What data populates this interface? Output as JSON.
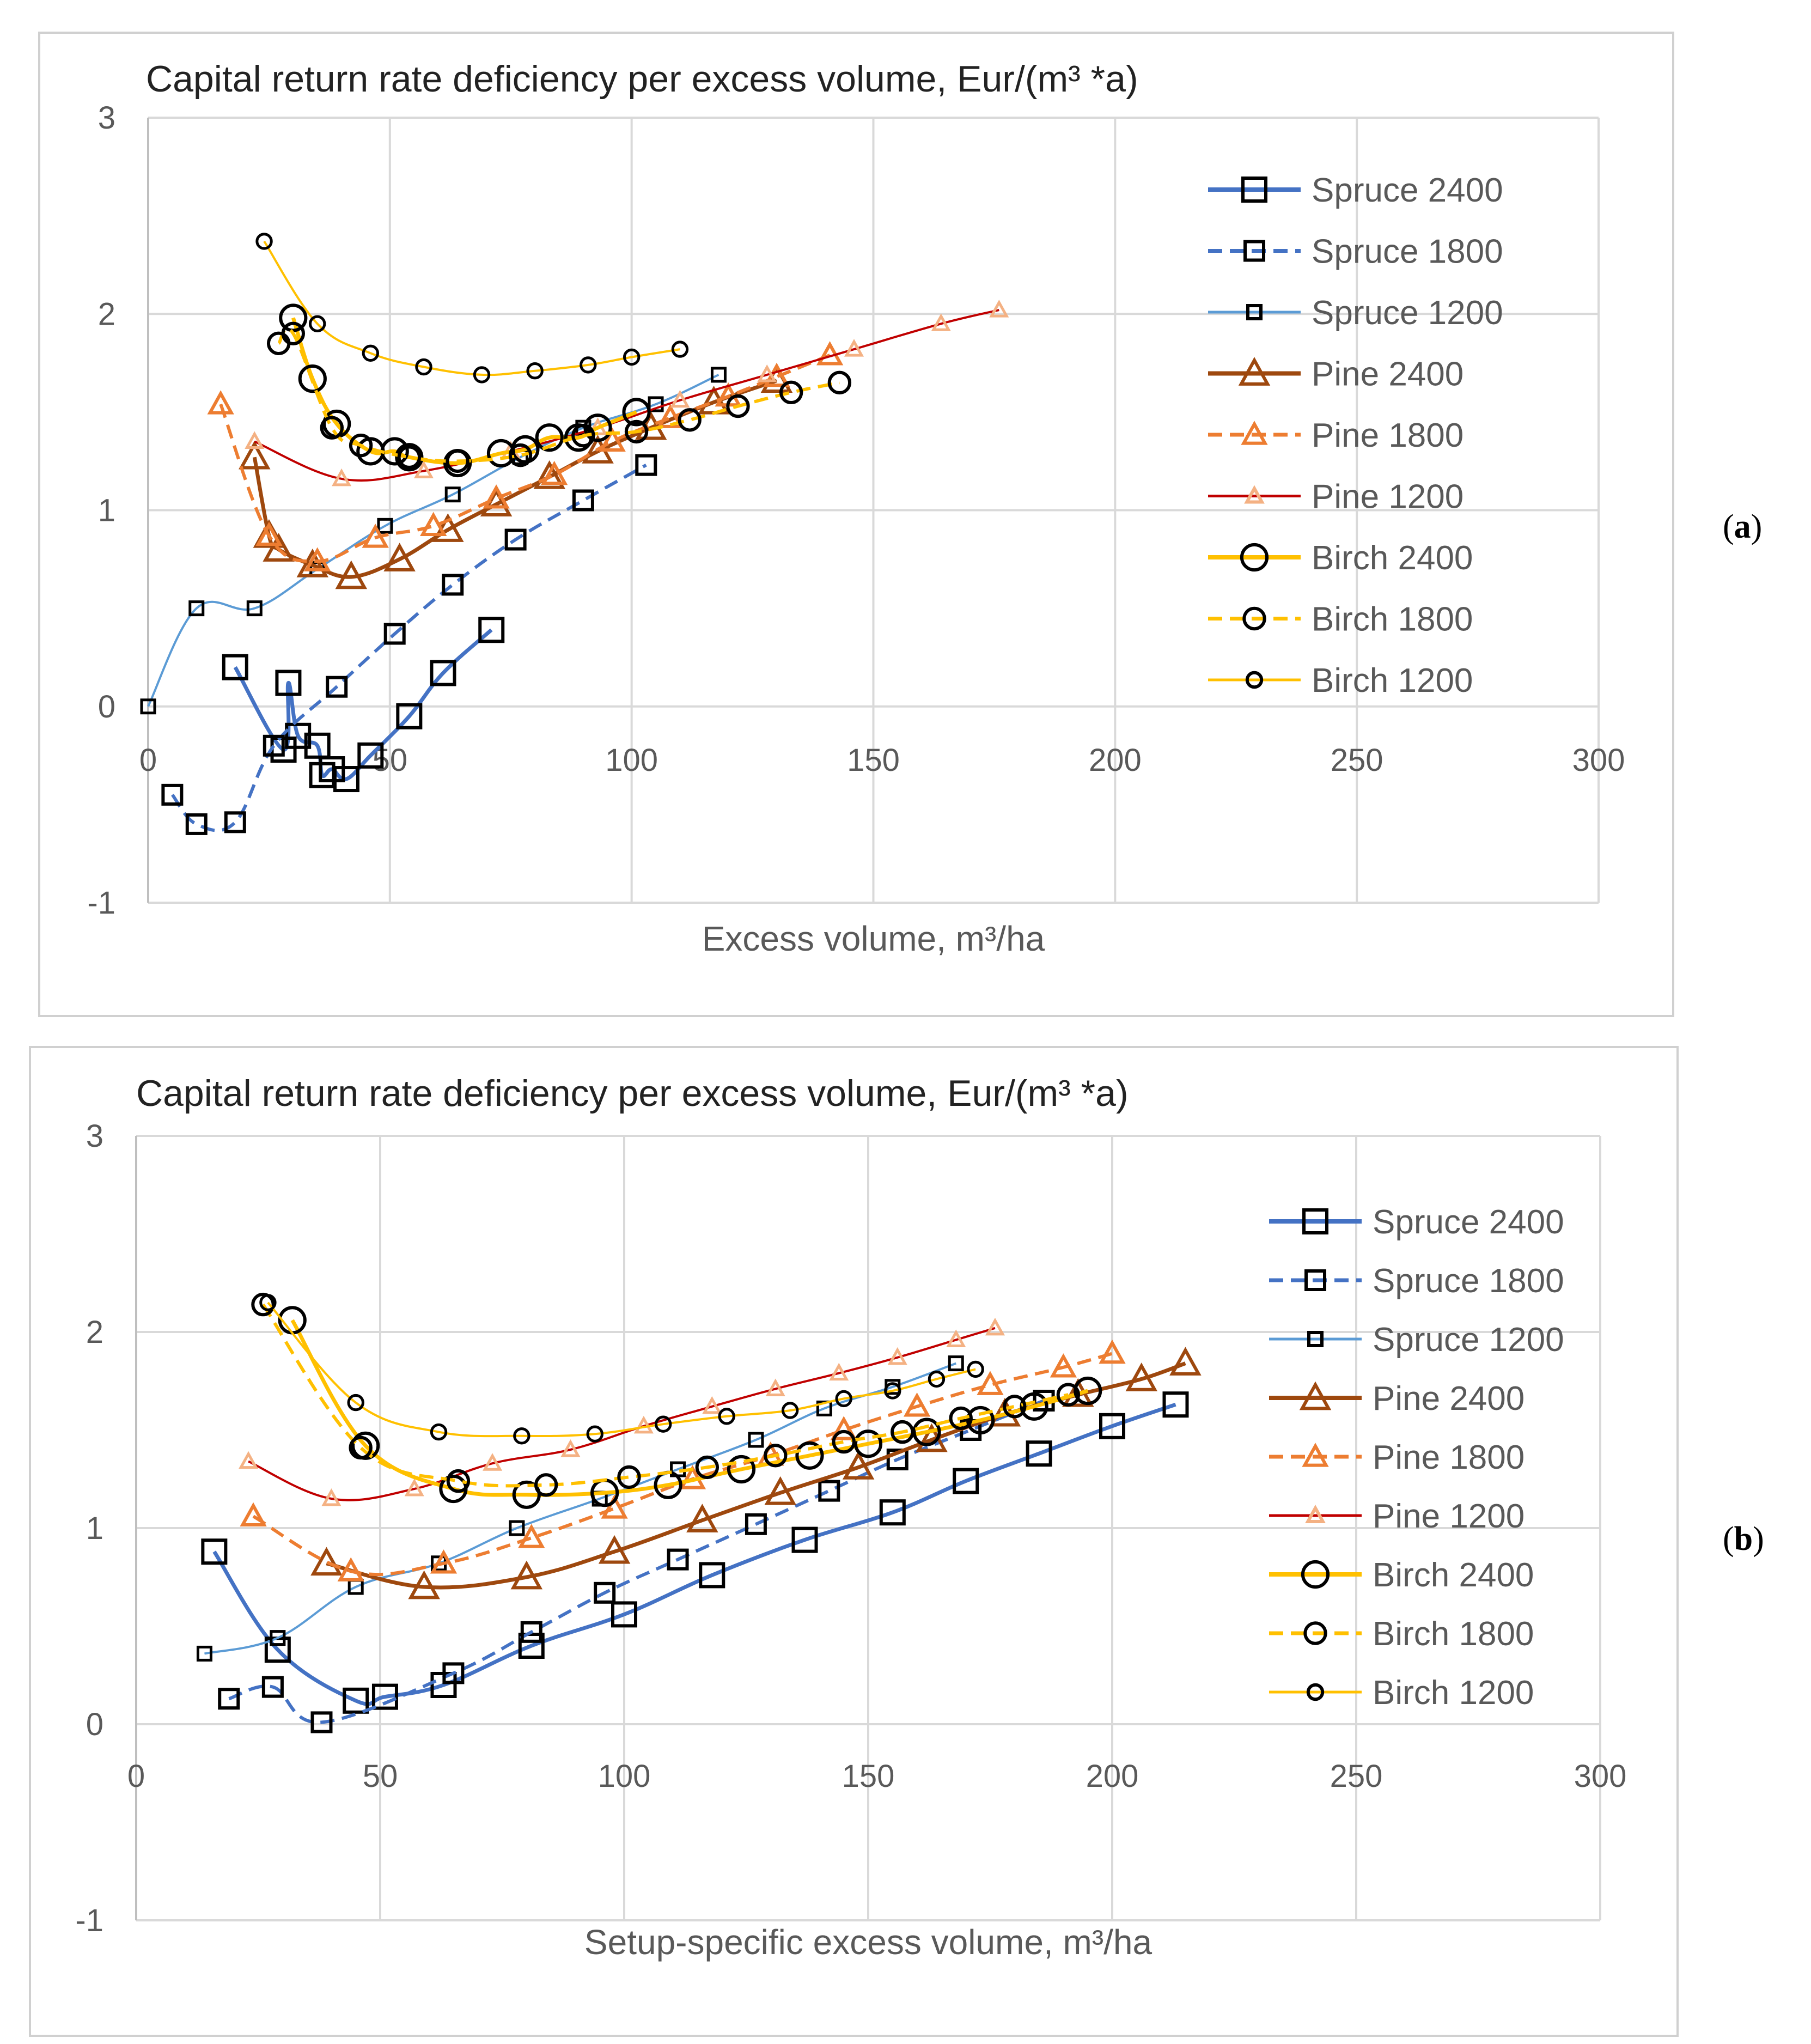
{
  "chart_data": [
    {
      "type": "line",
      "panel_label": "a",
      "title": "Capital return rate deficiency per excess volume,  Eur/(m³ *a)",
      "xlabel": "Excess volume, m³/ha",
      "ylabel": "",
      "xlim": [
        0,
        300
      ],
      "ylim": [
        -1,
        3
      ],
      "xticks": [
        "0",
        "50",
        "100",
        "150",
        "200",
        "250",
        "300"
      ],
      "yticks": [
        "-1",
        "0",
        "1",
        "2",
        "3"
      ],
      "grid": true,
      "legend_position": "right",
      "series": [
        {
          "name": "Spruce 2400",
          "color": "#4472c4",
          "dash": "solid",
          "marker": "square",
          "size": "large",
          "x": [
            18,
            28,
            29,
            31,
            35,
            36,
            38,
            41,
            46,
            54,
            61,
            71
          ],
          "y": [
            0.2,
            -0.22,
            0.12,
            -0.15,
            -0.2,
            -0.35,
            -0.32,
            -0.37,
            -0.25,
            -0.05,
            0.17,
            0.39
          ]
        },
        {
          "name": "Spruce 1800",
          "color": "#4472c4",
          "dash": "dash",
          "marker": "square",
          "size": "medium",
          "x": [
            5,
            10,
            18,
            26,
            39,
            51,
            63,
            76,
            90,
            103
          ],
          "y": [
            -0.45,
            -0.6,
            -0.59,
            -0.2,
            0.1,
            0.37,
            0.62,
            0.85,
            1.05,
            1.23
          ]
        },
        {
          "name": "Spruce 1200",
          "color": "#5b9bd5",
          "dash": "solid",
          "marker": "square",
          "size": "small",
          "x": [
            0,
            10,
            22,
            35,
            49,
            63,
            77,
            90,
            105,
            118
          ],
          "y": [
            0.0,
            0.5,
            0.5,
            0.7,
            0.92,
            1.08,
            1.27,
            1.42,
            1.54,
            1.69
          ]
        },
        {
          "name": "Pine 2400",
          "color": "#9e480e",
          "dash": "solid",
          "marker": "triangle",
          "size": "large",
          "x": [
            22,
            25,
            27,
            34,
            42,
            52,
            62,
            72,
            83,
            93,
            104,
            117,
            130
          ],
          "y": [
            1.27,
            0.87,
            0.8,
            0.72,
            0.66,
            0.75,
            0.9,
            1.03,
            1.17,
            1.3,
            1.42,
            1.55,
            1.66
          ]
        },
        {
          "name": "Pine 1800",
          "color": "#ed7d31",
          "dash": "dash",
          "marker": "triangle",
          "size": "medium",
          "x": [
            15,
            25,
            35,
            47,
            59,
            72,
            84,
            96,
            108,
            120,
            130,
            141
          ],
          "y": [
            1.54,
            0.87,
            0.74,
            0.86,
            0.92,
            1.06,
            1.18,
            1.35,
            1.47,
            1.58,
            1.68,
            1.79
          ]
        },
        {
          "name": "Pine 1200",
          "color": "#c00000",
          "dash": "solid",
          "marker": "triangle",
          "size": "small",
          "marker_color": "#f4b183",
          "x": [
            22,
            40,
            57,
            75,
            93,
            110,
            128,
            146,
            164,
            176
          ],
          "y": [
            1.35,
            1.16,
            1.2,
            1.3,
            1.42,
            1.56,
            1.69,
            1.82,
            1.95,
            2.02
          ]
        },
        {
          "name": "Birch 2400",
          "color": "#ffc000",
          "dash": "solid",
          "marker": "circle",
          "size": "large",
          "x": [
            30,
            34,
            39,
            46,
            51,
            54,
            64,
            73,
            78,
            83,
            89,
            93,
            101
          ],
          "y": [
            1.98,
            1.67,
            1.44,
            1.3,
            1.3,
            1.27,
            1.24,
            1.29,
            1.31,
            1.37,
            1.37,
            1.42,
            1.5
          ]
        },
        {
          "name": "Birch 1800",
          "color": "#ffc000",
          "dash": "dash",
          "marker": "circle",
          "size": "medium",
          "x": [
            27,
            30,
            38,
            44,
            54,
            64,
            77,
            90,
            101,
            112,
            122,
            133,
            143
          ],
          "y": [
            1.85,
            1.9,
            1.42,
            1.33,
            1.27,
            1.25,
            1.28,
            1.38,
            1.4,
            1.46,
            1.53,
            1.6,
            1.65
          ]
        },
        {
          "name": "Birch 1200",
          "color": "#ffc000",
          "dash": "solid",
          "marker": "circle",
          "size": "small",
          "x": [
            24,
            35,
            46,
            57,
            69,
            80,
            91,
            100,
            110
          ],
          "y": [
            2.37,
            1.95,
            1.8,
            1.73,
            1.69,
            1.71,
            1.74,
            1.78,
            1.82
          ]
        }
      ]
    },
    {
      "type": "line",
      "panel_label": "b",
      "title": "Capital return rate deficiency per excess volume,  Eur/(m³ *a)",
      "xlabel": "Setup-specific excess volume, m³/ha",
      "ylabel": "",
      "xlim": [
        0,
        300
      ],
      "ylim": [
        -1,
        3
      ],
      "xticks": [
        "0",
        "50",
        "100",
        "150",
        "200",
        "250",
        "300"
      ],
      "yticks": [
        "-1",
        "0",
        "1",
        "2",
        "3"
      ],
      "grid": true,
      "legend_position": "right",
      "series": [
        {
          "name": "Spruce 2400",
          "color": "#4472c4",
          "dash": "solid",
          "marker": "square",
          "size": "large",
          "x": [
            16,
            29,
            45,
            51,
            63,
            81,
            100,
            118,
            137,
            155,
            170,
            185,
            200,
            213
          ],
          "y": [
            0.88,
            0.38,
            0.12,
            0.14,
            0.2,
            0.4,
            0.56,
            0.76,
            0.94,
            1.08,
            1.24,
            1.38,
            1.52,
            1.63
          ]
        },
        {
          "name": "Spruce 1800",
          "color": "#4472c4",
          "dash": "dash",
          "marker": "square",
          "size": "medium",
          "x": [
            19,
            28,
            38,
            65,
            81,
            96,
            111,
            127,
            142,
            156,
            171,
            186
          ],
          "y": [
            0.13,
            0.19,
            0.01,
            0.26,
            0.47,
            0.67,
            0.84,
            1.02,
            1.19,
            1.35,
            1.5,
            1.65
          ]
        },
        {
          "name": "Spruce 1200",
          "color": "#5b9bd5",
          "dash": "solid",
          "marker": "square",
          "size": "small",
          "x": [
            14,
            29,
            45,
            62,
            78,
            95,
            111,
            127,
            141,
            155,
            168
          ],
          "y": [
            0.36,
            0.44,
            0.7,
            0.82,
            1.0,
            1.15,
            1.3,
            1.45,
            1.61,
            1.72,
            1.84
          ]
        },
        {
          "name": "Pine 2400",
          "color": "#9e480e",
          "dash": "solid",
          "marker": "triangle",
          "size": "large",
          "x": [
            39,
            59,
            80,
            98,
            116,
            132,
            148,
            163,
            178,
            193,
            206,
            215
          ],
          "y": [
            0.82,
            0.7,
            0.75,
            0.88,
            1.04,
            1.18,
            1.31,
            1.45,
            1.58,
            1.68,
            1.76,
            1.84
          ]
        },
        {
          "name": "Pine 1800",
          "color": "#ed7d31",
          "dash": "dash",
          "marker": "triangle",
          "size": "medium",
          "x": [
            24,
            44,
            63,
            81,
            98,
            114,
            130,
            145,
            160,
            175,
            190,
            200
          ],
          "y": [
            1.06,
            0.78,
            0.82,
            0.95,
            1.1,
            1.25,
            1.37,
            1.5,
            1.62,
            1.73,
            1.82,
            1.89
          ]
        },
        {
          "name": "Pine 1200",
          "color": "#c00000",
          "dash": "solid",
          "marker": "triangle",
          "size": "small",
          "marker_color": "#f4b183",
          "x": [
            23,
            40,
            57,
            73,
            89,
            104,
            118,
            131,
            144,
            156,
            168,
            176
          ],
          "y": [
            1.34,
            1.15,
            1.2,
            1.33,
            1.4,
            1.52,
            1.62,
            1.71,
            1.79,
            1.87,
            1.96,
            2.02
          ]
        },
        {
          "name": "Birch 2400",
          "color": "#ffc000",
          "dash": "solid",
          "marker": "circle",
          "size": "large",
          "x": [
            32,
            47,
            65,
            80,
            96,
            109,
            124,
            138,
            150,
            162,
            173,
            184,
            195
          ],
          "y": [
            2.06,
            1.42,
            1.2,
            1.17,
            1.18,
            1.22,
            1.3,
            1.37,
            1.43,
            1.49,
            1.55,
            1.62,
            1.7
          ]
        },
        {
          "name": "Birch 1800",
          "color": "#ffc000",
          "dash": "dash",
          "marker": "circle",
          "size": "medium",
          "x": [
            26,
            46,
            66,
            84,
            101,
            117,
            131,
            145,
            157,
            169,
            180,
            191
          ],
          "y": [
            2.14,
            1.41,
            1.24,
            1.22,
            1.26,
            1.31,
            1.37,
            1.44,
            1.49,
            1.56,
            1.62,
            1.68
          ]
        },
        {
          "name": "Birch 1200",
          "color": "#ffc000",
          "dash": "solid",
          "marker": "circle",
          "size": "small",
          "x": [
            27,
            45,
            62,
            79,
            94,
            108,
            121,
            134,
            145,
            155,
            164,
            172
          ],
          "y": [
            2.15,
            1.64,
            1.49,
            1.47,
            1.48,
            1.53,
            1.57,
            1.6,
            1.66,
            1.7,
            1.76,
            1.81
          ]
        }
      ]
    }
  ]
}
